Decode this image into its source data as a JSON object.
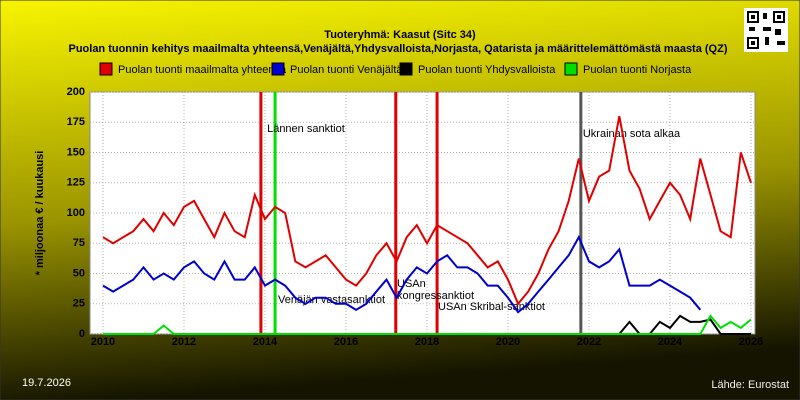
{
  "chart_data": {
    "type": "line",
    "title": "Tuoteryhmä: Kaasut (Sitc 34)",
    "subtitle": "Puolan tuonnin kehitys maailmalta yhteensä,Venäjältä,Yhdysvalloista,Norjasta, Qatarista ja määrittelemättömästä maasta (QZ)",
    "y_label": "* miljoonaa € / kuukausi",
    "date": "19.7.2026",
    "source": "Lähde: Eurostat",
    "x": [
      2010,
      2010.25,
      2010.5,
      2010.75,
      2011,
      2011.25,
      2011.5,
      2011.75,
      2012,
      2012.25,
      2012.5,
      2012.75,
      2013,
      2013.25,
      2013.5,
      2013.75,
      2014,
      2014.25,
      2014.5,
      2014.75,
      2015,
      2015.25,
      2015.5,
      2015.75,
      2016,
      2016.25,
      2016.5,
      2016.75,
      2017,
      2017.25,
      2017.5,
      2017.75,
      2018,
      2018.25,
      2018.5,
      2018.75,
      2019,
      2019.25,
      2019.5,
      2019.75,
      2020,
      2020.25,
      2020.5,
      2020.75,
      2021,
      2021.25,
      2021.5,
      2021.75,
      2022,
      2022.25,
      2022.5,
      2022.75,
      2023,
      2023.25,
      2023.5,
      2023.75,
      2024,
      2024.25,
      2024.5,
      2024.75,
      2025,
      2025.25,
      2025.5,
      2025.75,
      2026
    ],
    "series": [
      {
        "name": "Puolan tuonti maailmalta yhteensä",
        "color": "#e00000",
        "values": [
          80,
          75,
          80,
          85,
          95,
          85,
          100,
          90,
          105,
          110,
          95,
          80,
          100,
          85,
          80,
          115,
          95,
          105,
          100,
          60,
          55,
          60,
          65,
          55,
          45,
          40,
          50,
          65,
          75,
          60,
          80,
          90,
          75,
          90,
          85,
          80,
          75,
          65,
          55,
          60,
          45,
          25,
          35,
          50,
          70,
          85,
          110,
          145,
          110,
          130,
          135,
          180,
          135,
          120,
          95,
          110,
          125,
          115,
          95,
          145,
          115,
          85,
          80,
          150,
          125
        ]
      },
      {
        "name": "Puolan tuonti Venäjältä",
        "color": "#0000cc",
        "values": [
          40,
          35,
          40,
          45,
          55,
          45,
          50,
          45,
          55,
          60,
          50,
          45,
          60,
          45,
          45,
          55,
          40,
          45,
          40,
          30,
          25,
          30,
          30,
          25,
          25,
          20,
          25,
          35,
          45,
          30,
          45,
          55,
          50,
          60,
          65,
          55,
          55,
          50,
          40,
          40,
          30,
          18,
          25,
          35,
          45,
          55,
          65,
          80,
          60,
          55,
          60,
          70,
          40,
          40,
          40,
          45,
          40,
          35,
          30,
          20,
          null,
          null,
          null,
          null,
          null
        ]
      },
      {
        "name": "Puolan tuonti Yhdysvalloista",
        "color": "#000000",
        "values": [
          null,
          null,
          null,
          null,
          null,
          null,
          null,
          null,
          null,
          null,
          null,
          null,
          null,
          null,
          null,
          null,
          null,
          null,
          null,
          null,
          null,
          null,
          null,
          null,
          null,
          null,
          null,
          null,
          null,
          null,
          null,
          null,
          null,
          null,
          null,
          null,
          null,
          null,
          null,
          null,
          null,
          null,
          null,
          null,
          null,
          null,
          null,
          null,
          null,
          null,
          null,
          0,
          10,
          0,
          0,
          10,
          5,
          15,
          10,
          10,
          12,
          0,
          0,
          0,
          0
        ]
      },
      {
        "name": "Puolan tuonti Norjasta",
        "color": "#00e000",
        "values": [
          0,
          0,
          0,
          0,
          0,
          0,
          7,
          0,
          0,
          0,
          0,
          0,
          0,
          0,
          0,
          0,
          0,
          0,
          0,
          0,
          0,
          0,
          0,
          0,
          0,
          0,
          0,
          0,
          0,
          0,
          0,
          0,
          0,
          0,
          0,
          0,
          0,
          0,
          0,
          0,
          0,
          0,
          0,
          0,
          0,
          0,
          0,
          0,
          0,
          0,
          0,
          0,
          0,
          0,
          0,
          0,
          0,
          0,
          0,
          0,
          15,
          5,
          10,
          5,
          12
        ]
      }
    ],
    "events": [
      {
        "x": 2013.9,
        "color": "#e00000"
      },
      {
        "x": 2014.25,
        "color": "#00e000",
        "label": "Lännen sanktiot"
      },
      {
        "x": 2017.23,
        "color": "#e00000"
      },
      {
        "x": 2018.25,
        "color": "#e00000"
      },
      {
        "x": 2021.8,
        "color": "#555555",
        "label": "Ukrainan sota alkaa"
      }
    ],
    "annotations": [
      "Venäjän vastasanktiot",
      "USAn",
      "kongressanktiot",
      "USAn Skribal-sanktiot"
    ],
    "xlim": [
      2009.68,
      2026.1
    ],
    "xticks": [
      2010,
      2012,
      2014,
      2016,
      2018,
      2020,
      2022,
      2024,
      2026
    ],
    "ylim": [
      0,
      200
    ],
    "yticks": [
      0,
      25,
      50,
      75,
      100,
      125,
      150,
      175,
      200
    ],
    "grid": true
  }
}
